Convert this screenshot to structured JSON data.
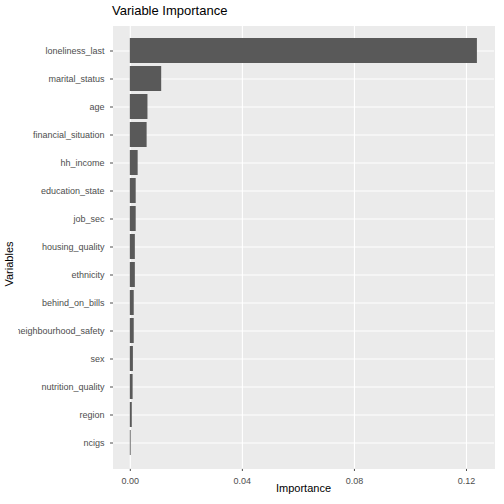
{
  "chart_data": {
    "type": "bar",
    "orientation": "horizontal",
    "title": "Variable Importance",
    "x_label": "Importance",
    "y_label": "Variables",
    "categories": [
      "loneliness_last",
      "marital_status",
      "age",
      "financial_situation",
      "hh_income",
      "education_state",
      "job_sec",
      "housing_quality",
      "ethnicity",
      "behind_on_bills",
      "neighbourhood_safety",
      "sex",
      "nutrition_quality",
      "region",
      "ncigs"
    ],
    "values": [
      0.1239,
      0.0112,
      0.0063,
      0.006,
      0.0028,
      0.0021,
      0.0021,
      0.0018,
      0.0018,
      0.0014,
      0.0014,
      0.0011,
      0.001,
      0.0007,
      0.0003
    ],
    "color": "#595959",
    "xlim": [
      -0.006,
      0.13
    ],
    "xticks": [
      {
        "value": 0,
        "label": "0.00"
      },
      {
        "value": 0.04,
        "label": "0.04"
      },
      {
        "value": 0.08,
        "label": "0.08"
      },
      {
        "value": 0.12,
        "label": "0.12"
      }
    ],
    "grid": true
  }
}
